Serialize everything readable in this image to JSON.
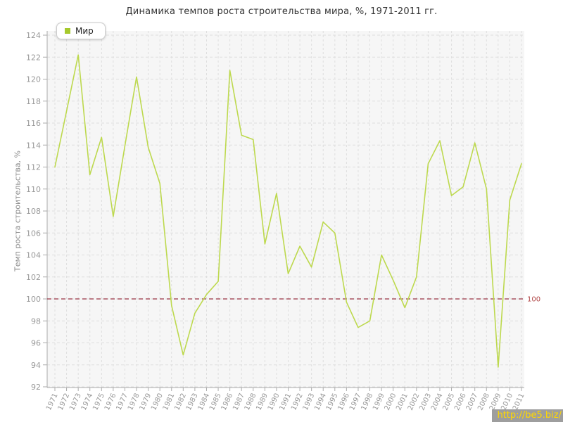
{
  "watermark": "http://be5.biz/",
  "chart_data": {
    "type": "line",
    "title": "Динамика темпов роста строительства мира, %, 1971-2011 гг.",
    "xlabel": "",
    "ylabel": "Темп роста строительства, %",
    "legend_position": "top-left",
    "grid": true,
    "ylim": [
      92,
      124
    ],
    "ytick_step": 2,
    "yticks": [
      92,
      94,
      96,
      98,
      100,
      102,
      104,
      106,
      108,
      110,
      112,
      114,
      116,
      118,
      120,
      122,
      124
    ],
    "x": [
      "1971",
      "1972",
      "1973",
      "1974",
      "1975",
      "1976",
      "1977",
      "1978",
      "1979",
      "1980",
      "1981",
      "1982",
      "1983",
      "1984",
      "1985",
      "1986",
      "1987",
      "1988",
      "1989",
      "1990",
      "1991",
      "1992",
      "1993",
      "1994",
      "1995",
      "1996",
      "1997",
      "1998",
      "1999",
      "2000",
      "2001",
      "2002",
      "2003",
      "2004",
      "2005",
      "2006",
      "2007",
      "2008",
      "2009",
      "2010",
      "2011"
    ],
    "series": [
      {
        "name": "Мир",
        "color": "#bdd94e",
        "marker_color": "#a6c92c",
        "values": [
          112.0,
          117.1,
          122.2,
          111.3,
          114.7,
          107.5,
          113.9,
          120.2,
          113.8,
          110.5,
          99.4,
          94.9,
          98.7,
          100.4,
          101.6,
          120.8,
          114.9,
          114.5,
          105.0,
          109.6,
          102.3,
          104.8,
          102.9,
          107.0,
          106.0,
          99.7,
          97.4,
          98.0,
          104.0,
          101.7,
          99.2,
          102.0,
          112.3,
          114.4,
          109.4,
          110.2,
          114.2,
          110.0,
          93.8,
          109.0,
          112.3
        ]
      }
    ],
    "reference_line": {
      "value": 100,
      "label": "100",
      "line_color": "#993344",
      "label_color": "#b04545"
    },
    "colors": {
      "plot_bg": "#f6f6f6",
      "grid": "#dedede",
      "axis": "#ababab",
      "tick_label": "#999999"
    }
  }
}
